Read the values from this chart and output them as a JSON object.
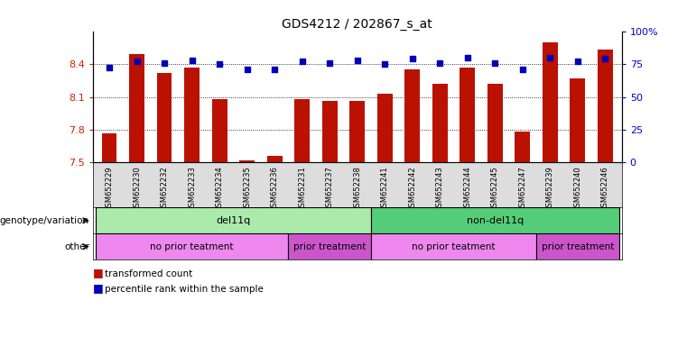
{
  "title": "GDS4212 / 202867_s_at",
  "samples": [
    "GSM652229",
    "GSM652230",
    "GSM652232",
    "GSM652233",
    "GSM652234",
    "GSM652235",
    "GSM652236",
    "GSM652231",
    "GSM652237",
    "GSM652238",
    "GSM652241",
    "GSM652242",
    "GSM652243",
    "GSM652244",
    "GSM652245",
    "GSM652247",
    "GSM652239",
    "GSM652240",
    "GSM652246"
  ],
  "red_values": [
    7.77,
    8.49,
    8.32,
    8.37,
    8.08,
    7.52,
    7.56,
    8.08,
    8.06,
    8.06,
    8.13,
    8.35,
    8.22,
    8.37,
    8.22,
    7.78,
    8.6,
    8.27,
    8.53
  ],
  "blue_values": [
    72,
    77,
    76,
    78,
    75,
    71,
    71,
    77,
    76,
    78,
    75,
    79,
    76,
    80,
    76,
    71,
    80,
    77,
    79
  ],
  "ylim_left": [
    7.5,
    8.7
  ],
  "ylim_right": [
    0,
    100
  ],
  "yticks_left": [
    7.5,
    7.8,
    8.1,
    8.4
  ],
  "ytick_labels_left": [
    "7.5",
    "7.8",
    "8.1",
    "8.4"
  ],
  "yticks_right": [
    0,
    25,
    50,
    75,
    100
  ],
  "ytick_labels_right": [
    "0",
    "25",
    "50",
    "75",
    "100%"
  ],
  "genotype_groups": [
    {
      "label": "del11q",
      "start": 0,
      "end": 10,
      "color": "#AAEAAA"
    },
    {
      "label": "non-del11q",
      "start": 10,
      "end": 19,
      "color": "#55CC77"
    }
  ],
  "other_groups": [
    {
      "label": "no prior teatment",
      "start": 0,
      "end": 7,
      "color": "#EE88EE"
    },
    {
      "label": "prior treatment",
      "start": 7,
      "end": 10,
      "color": "#CC55CC"
    },
    {
      "label": "no prior teatment",
      "start": 10,
      "end": 16,
      "color": "#EE88EE"
    },
    {
      "label": "prior treatment",
      "start": 16,
      "end": 19,
      "color": "#CC55CC"
    }
  ],
  "bar_color": "#BB1100",
  "dot_color": "#0000BB",
  "left_label_color": "#CC2200",
  "right_label_color": "#0000CC",
  "label_left_text": [
    "genotype/variation",
    "other"
  ],
  "legend_texts": [
    "transformed count",
    "percentile rank within the sample"
  ]
}
